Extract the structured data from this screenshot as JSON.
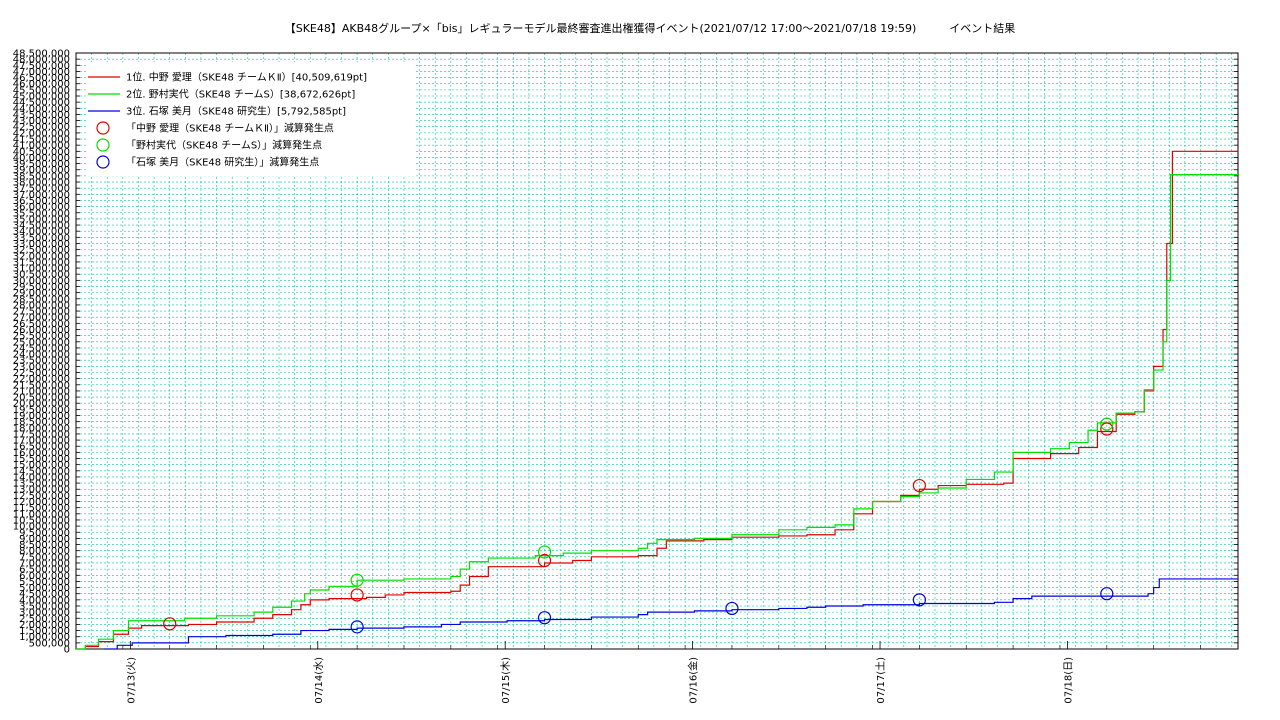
{
  "chart_data": {
    "type": "line",
    "title": "【SKE48】AKB48グループ×「bis」レギュラーモデル最終審査進出権獲得イベント(2021/07/12 17:00～2021/07/18 19:59)　　　イベント結果",
    "xlabel": "",
    "ylabel": "",
    "ylim": [
      0,
      48500000
    ],
    "ytick_step": 500000,
    "xlim": [
      0,
      6.2
    ],
    "x_unit": "days since 2021/07/12 17:00",
    "x_ticks": [
      {
        "x": 0.29,
        "label": "07/13(火)"
      },
      {
        "x": 1.29,
        "label": "07/14(水)"
      },
      {
        "x": 2.29,
        "label": "07/15(木)"
      },
      {
        "x": 3.29,
        "label": "07/16(金)"
      },
      {
        "x": 4.29,
        "label": "07/17(土)"
      },
      {
        "x": 5.29,
        "label": "07/18(日)"
      }
    ],
    "grid": true,
    "legend_position": "top-left",
    "series": [
      {
        "name": "1位. 中野 愛理（SKE48 チームＫⅡ）[40,509,619pt]",
        "color": "#e00000",
        "step": true,
        "points": [
          [
            0,
            0
          ],
          [
            0.05,
            200000
          ],
          [
            0.12,
            600000
          ],
          [
            0.2,
            1200000
          ],
          [
            0.28,
            1700000
          ],
          [
            0.35,
            1900000
          ],
          [
            0.6,
            2000000
          ],
          [
            0.75,
            2200000
          ],
          [
            0.95,
            2500000
          ],
          [
            1.05,
            2800000
          ],
          [
            1.15,
            3200000
          ],
          [
            1.2,
            3600000
          ],
          [
            1.25,
            4000000
          ],
          [
            1.35,
            4100000
          ],
          [
            1.55,
            4200000
          ],
          [
            1.65,
            4400000
          ],
          [
            1.75,
            4600000
          ],
          [
            2.0,
            4700000
          ],
          [
            2.05,
            5200000
          ],
          [
            2.1,
            5900000
          ],
          [
            2.2,
            6700000
          ],
          [
            2.5,
            7000000
          ],
          [
            2.65,
            7200000
          ],
          [
            2.75,
            7500000
          ],
          [
            3.0,
            7600000
          ],
          [
            3.1,
            8200000
          ],
          [
            3.15,
            8800000
          ],
          [
            3.35,
            8900000
          ],
          [
            3.5,
            9100000
          ],
          [
            3.75,
            9200000
          ],
          [
            3.9,
            9300000
          ],
          [
            4.05,
            9700000
          ],
          [
            4.15,
            11000000
          ],
          [
            4.25,
            12000000
          ],
          [
            4.4,
            12500000
          ],
          [
            4.5,
            13000000
          ],
          [
            4.6,
            13300000
          ],
          [
            4.75,
            13400000
          ],
          [
            4.95,
            13500000
          ],
          [
            5.0,
            15500000
          ],
          [
            5.2,
            15900000
          ],
          [
            5.35,
            16400000
          ],
          [
            5.45,
            17700000
          ],
          [
            5.55,
            19100000
          ],
          [
            5.65,
            19300000
          ],
          [
            5.7,
            21000000
          ],
          [
            5.75,
            23000000
          ],
          [
            5.8,
            26000000
          ],
          [
            5.82,
            33000000
          ],
          [
            5.85,
            40500000
          ],
          [
            6.2,
            40500000
          ]
        ]
      },
      {
        "name": "2位. 野村実代（SKE48 チームS）[38,672,626pt]",
        "color": "#00e000",
        "step": true,
        "points": [
          [
            0,
            0
          ],
          [
            0.05,
            300000
          ],
          [
            0.12,
            800000
          ],
          [
            0.2,
            1500000
          ],
          [
            0.28,
            2300000
          ],
          [
            0.58,
            2500000
          ],
          [
            0.75,
            2700000
          ],
          [
            0.95,
            3000000
          ],
          [
            1.05,
            3400000
          ],
          [
            1.15,
            3900000
          ],
          [
            1.22,
            4500000
          ],
          [
            1.25,
            4800000
          ],
          [
            1.35,
            5100000
          ],
          [
            1.5,
            5600000
          ],
          [
            1.75,
            5700000
          ],
          [
            2.0,
            5900000
          ],
          [
            2.05,
            6500000
          ],
          [
            2.1,
            7100000
          ],
          [
            2.2,
            7400000
          ],
          [
            2.45,
            7600000
          ],
          [
            2.6,
            7800000
          ],
          [
            2.75,
            8000000
          ],
          [
            3.0,
            8200000
          ],
          [
            3.05,
            8600000
          ],
          [
            3.1,
            8900000
          ],
          [
            3.3,
            9000000
          ],
          [
            3.5,
            9300000
          ],
          [
            3.75,
            9700000
          ],
          [
            3.9,
            9900000
          ],
          [
            4.05,
            10100000
          ],
          [
            4.15,
            11400000
          ],
          [
            4.25,
            12000000
          ],
          [
            4.4,
            12400000
          ],
          [
            4.5,
            12700000
          ],
          [
            4.6,
            13100000
          ],
          [
            4.75,
            13800000
          ],
          [
            4.9,
            14400000
          ],
          [
            5.0,
            16000000
          ],
          [
            5.2,
            16300000
          ],
          [
            5.3,
            16800000
          ],
          [
            5.4,
            17800000
          ],
          [
            5.45,
            18400000
          ],
          [
            5.55,
            19200000
          ],
          [
            5.65,
            19300000
          ],
          [
            5.7,
            21100000
          ],
          [
            5.75,
            22700000
          ],
          [
            5.8,
            25000000
          ],
          [
            5.82,
            30000000
          ],
          [
            5.84,
            38600000
          ],
          [
            6.2,
            38600000
          ]
        ]
      },
      {
        "name": "3位. 石塚 美月（SKE48 研究生）[5,792,585pt]",
        "color": "#0000e0",
        "step": true,
        "points": [
          [
            0.15,
            0
          ],
          [
            0.22,
            300000
          ],
          [
            0.3,
            500000
          ],
          [
            0.6,
            1000000
          ],
          [
            0.8,
            1100000
          ],
          [
            1.05,
            1200000
          ],
          [
            1.2,
            1500000
          ],
          [
            1.35,
            1600000
          ],
          [
            1.5,
            1700000
          ],
          [
            1.75,
            1800000
          ],
          [
            1.95,
            2000000
          ],
          [
            2.05,
            2200000
          ],
          [
            2.3,
            2300000
          ],
          [
            2.5,
            2400000
          ],
          [
            2.75,
            2600000
          ],
          [
            3.0,
            2800000
          ],
          [
            3.05,
            3000000
          ],
          [
            3.3,
            3100000
          ],
          [
            3.5,
            3200000
          ],
          [
            3.75,
            3300000
          ],
          [
            3.9,
            3400000
          ],
          [
            4.0,
            3500000
          ],
          [
            4.2,
            3600000
          ],
          [
            4.5,
            3700000
          ],
          [
            4.9,
            3800000
          ],
          [
            5.0,
            4100000
          ],
          [
            5.1,
            4300000
          ],
          [
            5.5,
            4300000
          ],
          [
            5.62,
            4300000
          ],
          [
            5.72,
            4500000
          ],
          [
            5.75,
            5000000
          ],
          [
            5.78,
            5700000
          ],
          [
            6.2,
            5700000
          ]
        ]
      }
    ],
    "markers": [
      {
        "name": "「中野 愛理（SKE48 チームＫⅡ）」減算発生点",
        "color": "#e00000",
        "points": [
          [
            0.5,
            2050000
          ],
          [
            1.5,
            4400000
          ],
          [
            2.5,
            7200000
          ],
          [
            4.5,
            13300000
          ],
          [
            5.5,
            17900000
          ]
        ]
      },
      {
        "name": "「野村実代（SKE48 チームS）」減算発生点",
        "color": "#00e000",
        "points": [
          [
            1.5,
            5600000
          ],
          [
            2.5,
            7900000
          ],
          [
            5.5,
            18300000
          ]
        ]
      },
      {
        "name": "「石塚 美月（SKE48 研究生）」減算発生点",
        "color": "#0000e0",
        "points": [
          [
            1.5,
            1800000
          ],
          [
            2.5,
            2550000
          ],
          [
            3.5,
            3300000
          ],
          [
            4.5,
            4000000
          ],
          [
            5.5,
            4500000
          ]
        ]
      }
    ]
  },
  "colors": {
    "grid": "#00c8a0",
    "axis": "#000000",
    "background": "#ffffff"
  }
}
